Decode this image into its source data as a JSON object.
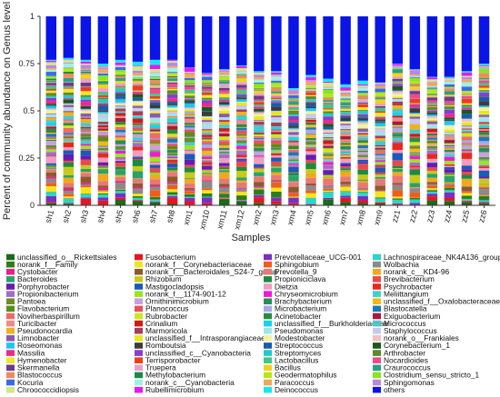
{
  "chart_data": {
    "type": "bar",
    "stacked": true,
    "normalized": true,
    "title": "",
    "xlabel": "Samples",
    "ylabel": "Percent of community abundance on Genus level",
    "ylim": [
      0,
      1
    ],
    "yticks": [
      0,
      0.25,
      0.5,
      0.75,
      1
    ],
    "grid": false,
    "legend_position": "bottom",
    "categories": [
      "sh1",
      "sh2",
      "sh3",
      "sh4",
      "sh5",
      "sh6",
      "sh7",
      "sh8",
      "xm1",
      "xm10",
      "xm11",
      "xm12",
      "xm2",
      "xm3",
      "xm4",
      "xm5",
      "xm6",
      "xm7",
      "xm8",
      "xm9",
      "zz1",
      "zz2",
      "zz3",
      "zz4",
      "zz5",
      "zz6"
    ],
    "others_series": "others",
    "others_values": [
      0.23,
      0.22,
      0.23,
      0.25,
      0.23,
      0.24,
      0.23,
      0.23,
      0.27,
      0.3,
      0.28,
      0.26,
      0.29,
      0.29,
      0.38,
      0.31,
      0.33,
      0.36,
      0.34,
      0.35,
      0.25,
      0.28,
      0.32,
      0.32,
      0.29,
      0.25
    ],
    "series": [
      {
        "name": "unclassified_o__Rickettsiales",
        "color": "#1a6b1a"
      },
      {
        "name": "Fusobacterium",
        "color": "#e8141e"
      },
      {
        "name": "Prevotellaceae_UCG-001",
        "color": "#7b2fbf"
      },
      {
        "name": "Lachnospiraceae_NK4A136_group",
        "color": "#2ad6c8"
      },
      {
        "name": "norank_f__Family",
        "color": "#2e7d1a"
      },
      {
        "name": "norank_f__Corynebacteriaceae",
        "color": "#f2e61a"
      },
      {
        "name": "Sphingobium",
        "color": "#f25c1a"
      },
      {
        "name": "Wolbachia",
        "color": "#8a8a8a"
      },
      {
        "name": "Cystobacter",
        "color": "#e8208a"
      },
      {
        "name": "norank_f__Bacteroidales_S24-7_group",
        "color": "#8c5a2e"
      },
      {
        "name": "Prevotella_9",
        "color": "#e87878"
      },
      {
        "name": "norank_c__KD4-96",
        "color": "#f2a81a"
      },
      {
        "name": "Bacteroides",
        "color": "#27a36a"
      },
      {
        "name": "Rhizobium",
        "color": "#c9c91a"
      },
      {
        "name": "Propioniciclava",
        "color": "#1a8c3c"
      },
      {
        "name": "Brevibacterium",
        "color": "#e84a4a"
      },
      {
        "name": "Porphyrobacter",
        "color": "#6a1ab0"
      },
      {
        "name": "Mastigocladopsis",
        "color": "#1a5ab8"
      },
      {
        "name": "Dietzia",
        "color": "#f29cc0"
      },
      {
        "name": "Psychrobacter",
        "color": "#e8281a"
      },
      {
        "name": "Propionibacterium",
        "color": "#a06ad0"
      },
      {
        "name": "norank_f__1174-901-12",
        "color": "#9ae61a"
      },
      {
        "name": "Chryseomicrobium",
        "color": "#f01ad0"
      },
      {
        "name": "Meliittangium",
        "color": "#3cd2d2"
      },
      {
        "name": "Pantoea",
        "color": "#6a8c2a"
      },
      {
        "name": "Ornithinimicrobium",
        "color": "#c8a0e0"
      },
      {
        "name": "Brachybacterium",
        "color": "#2a8c5a"
      },
      {
        "name": "unclassified_f__Oxalobacteraceae",
        "color": "#f2b81a"
      },
      {
        "name": "Flavobacterium",
        "color": "#5a8c1a"
      },
      {
        "name": "Planococcus",
        "color": "#e8505a"
      },
      {
        "name": "Microbacterium",
        "color": "#a8a8e8"
      },
      {
        "name": "Blastocatella",
        "color": "#1a7ab8"
      },
      {
        "name": "Noviherbaspirillum",
        "color": "#f06a6a"
      },
      {
        "name": "Rubrobacter",
        "color": "#d0e61a"
      },
      {
        "name": "Acinetobacter",
        "color": "#2a8c3c"
      },
      {
        "name": "Exiguobacterium",
        "color": "#a81a3c"
      },
      {
        "name": "Turicibacter",
        "color": "#f08a8a"
      },
      {
        "name": "Crinalium",
        "color": "#d01a1a"
      },
      {
        "name": "unclassified_f__Burkholderiaceae",
        "color": "#1ad2e6"
      },
      {
        "name": "Micrococcus",
        "color": "#4ac8c8"
      },
      {
        "name": "Pseudonocardia",
        "color": "#f2b01a"
      },
      {
        "name": "Marmoricola",
        "color": "#a83c5a"
      },
      {
        "name": "Pseudomonas",
        "color": "#a0e6e6"
      },
      {
        "name": "Staphylococcus",
        "color": "#c8c8f2"
      },
      {
        "name": "Limnobacter",
        "color": "#8a5ab0"
      },
      {
        "name": "unclassified_f__Intrasporangiaceae",
        "color": "#e8e81a"
      },
      {
        "name": "Modestobacter",
        "color": "#f2f2a0"
      },
      {
        "name": "norank_o__Frankiales",
        "color": "#f2c0c0"
      },
      {
        "name": "Roseomonas",
        "color": "#1ac8f2"
      },
      {
        "name": "Romboutsia",
        "color": "#3c3c3c"
      },
      {
        "name": "Streptococcus",
        "color": "#1a5ab0"
      },
      {
        "name": "Corynebacterium_1",
        "color": "#1a5a1a"
      },
      {
        "name": "Massilia",
        "color": "#f0288a"
      },
      {
        "name": "unclassified_c__Cyanobacteria",
        "color": "#8a3cd0"
      },
      {
        "name": "Streptomyces",
        "color": "#28c8c8"
      },
      {
        "name": "Arthrobacter",
        "color": "#5a8c2a"
      },
      {
        "name": "Hymenobacter",
        "color": "#f2e628"
      },
      {
        "name": "Terrisporobacter",
        "color": "#f03c1a"
      },
      {
        "name": "Lactobacillus",
        "color": "#3cc88a"
      },
      {
        "name": "Nocardioides",
        "color": "#f04a8a"
      },
      {
        "name": "Skermanella",
        "color": "#6a3c8a"
      },
      {
        "name": "Truepera",
        "color": "#e8a0c8"
      },
      {
        "name": "Bacillus",
        "color": "#f2d21a"
      },
      {
        "name": "Craurococcus",
        "color": "#28a08a"
      },
      {
        "name": "Blastococcus",
        "color": "#f08a5a"
      },
      {
        "name": "Methylobacterium",
        "color": "#1a8a4a"
      },
      {
        "name": "Geodermatophilus",
        "color": "#b8e61a"
      },
      {
        "name": "Clostridium_sensu_stricto_1",
        "color": "#88e61a"
      },
      {
        "name": "Kocuria",
        "color": "#3c6ae6"
      },
      {
        "name": "norank_c__Cyanobacteria",
        "color": "#a0f0e6"
      },
      {
        "name": "Paracoccus",
        "color": "#f0a85a"
      },
      {
        "name": "Sphingomonas",
        "color": "#b888e0"
      },
      {
        "name": "Chroococcidiopsis",
        "color": "#d0e68a"
      },
      {
        "name": "Rubellimicrobium",
        "color": "#e61af0"
      },
      {
        "name": "Deinococcus",
        "color": "#1ae6f0"
      },
      {
        "name": "others",
        "color": "#0a14e6"
      }
    ]
  }
}
